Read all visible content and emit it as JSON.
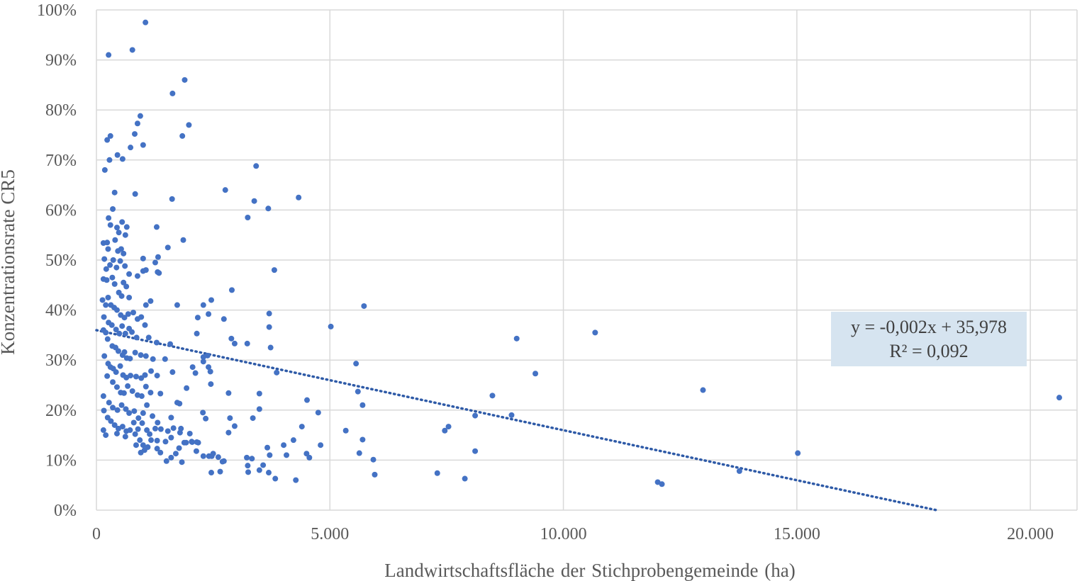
{
  "chart_data": {
    "type": "scatter",
    "xlabel": "Landwirtschaftsfläche der Stichprobengemeinde (ha)",
    "ylabel": "Konzentrationsrate CR5",
    "xlim": [
      0,
      21000
    ],
    "ylim": [
      0,
      100
    ],
    "x_ticks": [
      0,
      5000,
      10000,
      15000,
      20000
    ],
    "x_tick_labels": [
      "0",
      "5.000",
      "10.000",
      "15.000",
      "20.000"
    ],
    "y_ticks": [
      0,
      10,
      20,
      30,
      40,
      50,
      60,
      70,
      80,
      90,
      100
    ],
    "y_tick_labels": [
      "0%",
      "10%",
      "20%",
      "30%",
      "40%",
      "50%",
      "60%",
      "70%",
      "80%",
      "90%",
      "100%"
    ],
    "grid": true,
    "point_color": "#4472c4",
    "trendline": {
      "style": "dotted",
      "slope": -0.002,
      "intercept": 35.978,
      "equation_label": "y = -0,002x + 35,978",
      "r2_label": "R² = 0,092",
      "label_background": "#d6e4f0"
    },
    "points": [
      [
        1050,
        97.5
      ],
      [
        260,
        91
      ],
      [
        770,
        92
      ],
      [
        1890,
        86
      ],
      [
        1630,
        83.3
      ],
      [
        1980,
        77
      ],
      [
        1840,
        74.8
      ],
      [
        940,
        78.8
      ],
      [
        880,
        77.3
      ],
      [
        820,
        75.2
      ],
      [
        730,
        72.5
      ],
      [
        1000,
        73
      ],
      [
        300,
        74.8
      ],
      [
        230,
        74
      ],
      [
        180,
        68
      ],
      [
        280,
        70
      ],
      [
        450,
        71
      ],
      [
        560,
        70.2
      ],
      [
        390,
        63.5
      ],
      [
        830,
        63.2
      ],
      [
        1620,
        62.2
      ],
      [
        2760,
        64
      ],
      [
        3420,
        68.8
      ],
      [
        3380,
        61.8
      ],
      [
        3240,
        58.5
      ],
      [
        3680,
        60.3
      ],
      [
        4330,
        62.5
      ],
      [
        260,
        58.4
      ],
      [
        350,
        60.2
      ],
      [
        300,
        57
      ],
      [
        440,
        56.5
      ],
      [
        480,
        55.5
      ],
      [
        550,
        57.6
      ],
      [
        650,
        56.6
      ],
      [
        620,
        55
      ],
      [
        1290,
        56.6
      ],
      [
        1860,
        54
      ],
      [
        1530,
        52.5
      ],
      [
        150,
        53.4
      ],
      [
        230,
        53.5
      ],
      [
        250,
        52.2
      ],
      [
        400,
        54
      ],
      [
        460,
        51.8
      ],
      [
        530,
        52.2
      ],
      [
        580,
        51.3
      ],
      [
        1000,
        50.3
      ],
      [
        1320,
        50.6
      ],
      [
        1260,
        49.5
      ],
      [
        170,
        50.2
      ],
      [
        210,
        48.2
      ],
      [
        290,
        49
      ],
      [
        360,
        50
      ],
      [
        430,
        48.5
      ],
      [
        510,
        49.8
      ],
      [
        610,
        48.8
      ],
      [
        700,
        47.2
      ],
      [
        880,
        46.8
      ],
      [
        1000,
        47.8
      ],
      [
        1060,
        48
      ],
      [
        1310,
        47.6
      ],
      [
        1340,
        47.4
      ],
      [
        3810,
        48
      ],
      [
        150,
        46.2
      ],
      [
        220,
        46
      ],
      [
        340,
        46.5
      ],
      [
        390,
        45.2
      ],
      [
        580,
        45.5
      ],
      [
        640,
        44.7
      ],
      [
        480,
        43.5
      ],
      [
        540,
        42.8
      ],
      [
        700,
        42.5
      ],
      [
        2900,
        44
      ],
      [
        1160,
        41.8
      ],
      [
        1060,
        41
      ],
      [
        1730,
        41
      ],
      [
        2460,
        42
      ],
      [
        2400,
        39.2
      ],
      [
        2730,
        38.2
      ],
      [
        5730,
        40.8
      ],
      [
        3700,
        39.3
      ],
      [
        3700,
        36.6
      ],
      [
        3730,
        32.5
      ],
      [
        3860,
        27.5
      ],
      [
        5020,
        36.7
      ],
      [
        5560,
        29.3
      ],
      [
        5700,
        21
      ],
      [
        130,
        42
      ],
      [
        200,
        41
      ],
      [
        250,
        42.5
      ],
      [
        310,
        41
      ],
      [
        380,
        40.5
      ],
      [
        440,
        40
      ],
      [
        520,
        39
      ],
      [
        600,
        38.5
      ],
      [
        680,
        39.2
      ],
      [
        790,
        39.5
      ],
      [
        880,
        38.2
      ],
      [
        960,
        38.6
      ],
      [
        1040,
        37
      ],
      [
        160,
        38.6
      ],
      [
        260,
        37.5
      ],
      [
        330,
        37
      ],
      [
        420,
        36.1
      ],
      [
        490,
        35.3
      ],
      [
        550,
        36.8
      ],
      [
        620,
        35.3
      ],
      [
        700,
        36.3
      ],
      [
        760,
        35.6
      ],
      [
        860,
        34.5
      ],
      [
        1120,
        34.5
      ],
      [
        1290,
        33.5
      ],
      [
        1580,
        33.2
      ],
      [
        2150,
        35.3
      ],
      [
        2890,
        34.3
      ],
      [
        2960,
        33.3
      ],
      [
        3230,
        33.3
      ],
      [
        150,
        36
      ],
      [
        200,
        35.5
      ],
      [
        240,
        34.2
      ],
      [
        340,
        32.8
      ],
      [
        410,
        32.5
      ],
      [
        470,
        31.8
      ],
      [
        560,
        31
      ],
      [
        600,
        31.6
      ],
      [
        650,
        30.4
      ],
      [
        720,
        30.3
      ],
      [
        830,
        31.5
      ],
      [
        950,
        31
      ],
      [
        1060,
        30.8
      ],
      [
        1210,
        30.2
      ],
      [
        1470,
        30.2
      ],
      [
        170,
        30.8
      ],
      [
        250,
        29.3
      ],
      [
        300,
        28.6
      ],
      [
        360,
        28.3
      ],
      [
        420,
        27.6
      ],
      [
        510,
        28.8
      ],
      [
        570,
        27
      ],
      [
        640,
        26.5
      ],
      [
        730,
        26.9
      ],
      [
        850,
        26.7
      ],
      [
        960,
        26.4
      ],
      [
        1040,
        27
      ],
      [
        1170,
        27.8
      ],
      [
        1300,
        26.9
      ],
      [
        1630,
        27.6
      ],
      [
        2060,
        28.6
      ],
      [
        2120,
        27.4
      ],
      [
        2290,
        29.7
      ],
      [
        2380,
        30.9
      ],
      [
        2440,
        27.7
      ],
      [
        2290,
        30.6
      ],
      [
        230,
        26.8
      ],
      [
        350,
        25.6
      ],
      [
        440,
        24.6
      ],
      [
        520,
        23.5
      ],
      [
        590,
        23.4
      ],
      [
        670,
        24.8
      ],
      [
        770,
        23.8
      ],
      [
        880,
        23
      ],
      [
        970,
        22.8
      ],
      [
        1060,
        24.7
      ],
      [
        1160,
        23.5
      ],
      [
        1370,
        23.3
      ],
      [
        1930,
        24.4
      ],
      [
        2170,
        38.5
      ],
      [
        2290,
        41
      ],
      [
        2400,
        28.6
      ],
      [
        2450,
        25.2
      ],
      [
        2830,
        23.4
      ],
      [
        3490,
        23.3
      ],
      [
        3490,
        20.2
      ],
      [
        4510,
        22
      ],
      [
        5600,
        23.7
      ],
      [
        8480,
        22.9
      ],
      [
        9000,
        34.3
      ],
      [
        9400,
        27.3
      ],
      [
        10680,
        35.5
      ],
      [
        12990,
        24
      ],
      [
        20620,
        22.5
      ],
      [
        150,
        22.8
      ],
      [
        270,
        21.5
      ],
      [
        350,
        20.5
      ],
      [
        450,
        20
      ],
      [
        540,
        21
      ],
      [
        630,
        20.2
      ],
      [
        700,
        19.4
      ],
      [
        810,
        19.8
      ],
      [
        900,
        18.4
      ],
      [
        1000,
        19.4
      ],
      [
        1080,
        21
      ],
      [
        1200,
        18.8
      ],
      [
        1310,
        17.5
      ],
      [
        1600,
        18.5
      ],
      [
        1730,
        21.5
      ],
      [
        1780,
        21.3
      ],
      [
        2280,
        19.5
      ],
      [
        2340,
        18.3
      ],
      [
        2860,
        18.4
      ],
      [
        2960,
        16.8
      ],
      [
        3350,
        18.4
      ],
      [
        4750,
        19.5
      ],
      [
        160,
        19.9
      ],
      [
        240,
        18.5
      ],
      [
        310,
        17.8
      ],
      [
        390,
        17
      ],
      [
        470,
        16.3
      ],
      [
        560,
        16.7
      ],
      [
        640,
        15.8
      ],
      [
        720,
        16
      ],
      [
        800,
        17.5
      ],
      [
        890,
        16.2
      ],
      [
        980,
        17.4
      ],
      [
        1080,
        16
      ],
      [
        1140,
        15.2
      ],
      [
        1260,
        16.3
      ],
      [
        1380,
        16.2
      ],
      [
        1530,
        15.8
      ],
      [
        1650,
        16.4
      ],
      [
        1790,
        15.5
      ],
      [
        1810,
        16.3
      ],
      [
        2000,
        15.3
      ],
      [
        2830,
        15.5
      ],
      [
        4400,
        16.7
      ],
      [
        5340,
        15.9
      ],
      [
        7460,
        15.9
      ],
      [
        7540,
        16.7
      ],
      [
        8110,
        18.9
      ],
      [
        8890,
        19
      ],
      [
        150,
        16
      ],
      [
        200,
        15
      ],
      [
        440,
        15.3
      ],
      [
        620,
        14.7
      ],
      [
        830,
        15.2
      ],
      [
        930,
        14
      ],
      [
        1170,
        14
      ],
      [
        1300,
        13.9
      ],
      [
        1480,
        13.7
      ],
      [
        1600,
        14.5
      ],
      [
        1920,
        13.5
      ],
      [
        2050,
        13.6
      ],
      [
        2150,
        13.6
      ],
      [
        2180,
        13.5
      ],
      [
        4220,
        14
      ],
      [
        5700,
        14.1
      ],
      [
        850,
        13
      ],
      [
        1000,
        13
      ],
      [
        1100,
        12.6
      ],
      [
        1300,
        12.3
      ],
      [
        1770,
        12.4
      ],
      [
        1880,
        13.5
      ],
      [
        2040,
        13.7
      ],
      [
        2140,
        11.8
      ],
      [
        3660,
        12.5
      ],
      [
        4010,
        13
      ],
      [
        4800,
        13
      ],
      [
        8110,
        11.8
      ],
      [
        5630,
        11.4
      ],
      [
        950,
        11.5
      ],
      [
        1030,
        12
      ],
      [
        1370,
        11.5
      ],
      [
        1600,
        10.5
      ],
      [
        1700,
        11.3
      ],
      [
        2290,
        10.8
      ],
      [
        2410,
        10.8
      ],
      [
        2500,
        11.3
      ],
      [
        2610,
        10.6
      ],
      [
        2470,
        10.8
      ],
      [
        2730,
        9.8
      ],
      [
        3220,
        10.5
      ],
      [
        3330,
        10.3
      ],
      [
        3710,
        11
      ],
      [
        4070,
        11
      ],
      [
        4500,
        11.3
      ],
      [
        4560,
        10.5
      ],
      [
        5930,
        10.1
      ],
      [
        15020,
        11.4
      ],
      [
        1500,
        9.8
      ],
      [
        1830,
        9.6
      ],
      [
        2700,
        9.7
      ],
      [
        3240,
        8.9
      ],
      [
        3490,
        8
      ],
      [
        3570,
        9
      ],
      [
        3690,
        7.5
      ],
      [
        2460,
        7.5
      ],
      [
        2650,
        7.7
      ],
      [
        3250,
        7.6
      ],
      [
        3830,
        6.3
      ],
      [
        4270,
        6
      ],
      [
        5960,
        7.1
      ],
      [
        7300,
        7.4
      ],
      [
        7890,
        6.3
      ],
      [
        12020,
        5.6
      ],
      [
        12110,
        5.2
      ],
      [
        13770,
        7.8
      ]
    ]
  }
}
